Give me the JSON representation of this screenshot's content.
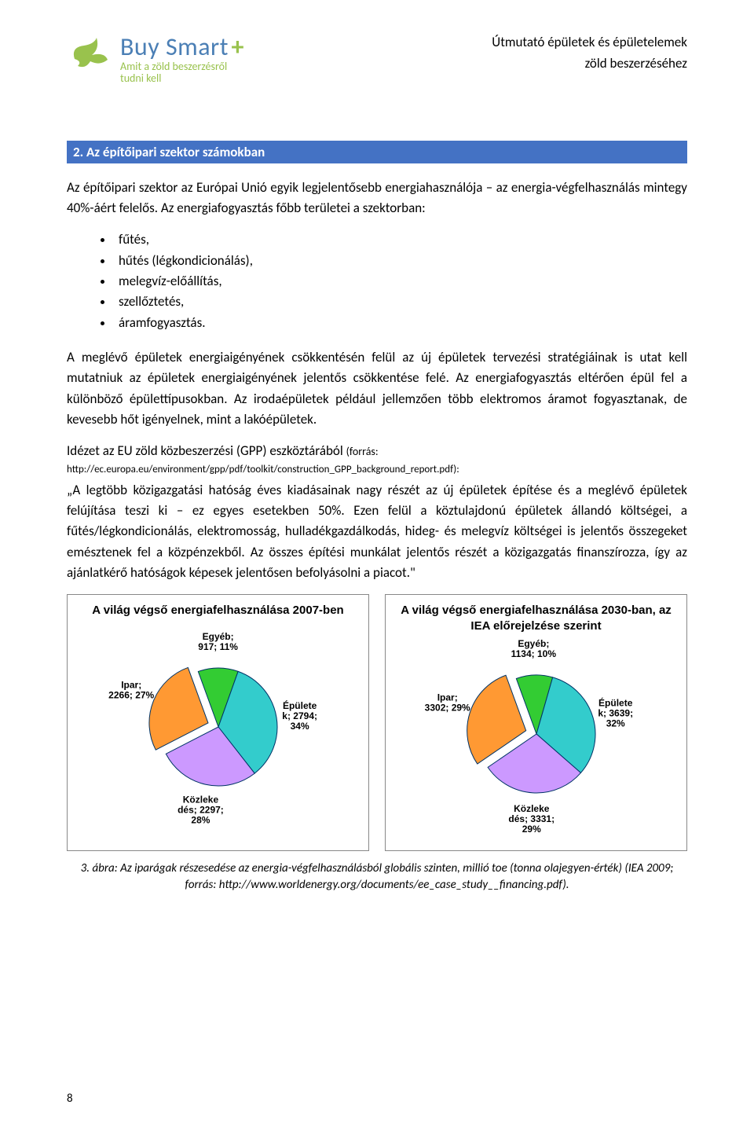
{
  "header": {
    "logo_main": "Buy Smart",
    "logo_plus": "+",
    "logo_sub_l1": "Amit a zöld beszerzésről",
    "logo_sub_l2": "tudni kell",
    "right_l1": "Útmutató épületek és épületelemek",
    "right_l2": "zöld beszerzéséhez"
  },
  "section_bar": "2.   Az építőipari szektor számokban",
  "para1": "Az építőipari szektor az Európai Unió egyik legjelentősebb energiahasználója – az energia-végfelhasználás mintegy 40%-áért felelős. Az energiafogyasztás főbb területei a szektorban:",
  "bullets": [
    "fűtés,",
    "hűtés (légkondicionálás),",
    "melegvíz-előállítás,",
    "szellőztetés,",
    "áramfogyasztás."
  ],
  "para2": "A meglévő épületek energiaigényének csökkentésén felül az új épületek tervezési stratégiáinak is utat kell mutatniuk az épületek energiaigényének jelentős csökkentése felé. Az energiafogyasztás eltérően épül fel a különböző épülettípusokban. Az irodaépületek például jellemzően több elektromos áramot fogyasztanak, de kevesebb hőt igényelnek, mint a lakóépületek.",
  "para3_lead": "Idézet az EU zöld közbeszerzési (GPP) eszköztárából",
  "para3_src_label": "(forrás:",
  "para3_url": "http://ec.europa.eu/environment/gpp/pdf/toolkit/construction_GPP_background_report.pdf):",
  "para4": "„A legtöbb közigazgatási hatóság éves kiadásainak nagy részét az új épületek építése és a meglévő épületek felújítása teszi ki – ez egyes esetekben 50%. Ezen felül a köztulajdonú épületek állandó költségei, a fűtés/légkondicionálás, elektromosság, hulladékgazdálkodás, hideg- és melegvíz költségei is jelentős összegeket emésztenek fel a közpénzekből. Az összes építési munkálat jelentős részét a közigazgatás finanszírozza, így az ajánlatkérő hatóságok képesek jelentősen befolyásolni a piacot.\"",
  "chart_left": {
    "type": "pie",
    "title": "A világ végső energiafelhasználása 2007-ben",
    "slices": [
      {
        "label": "Egyéb",
        "value": 917,
        "pct": 11,
        "color": "#33cc33"
      },
      {
        "label": "Épületek",
        "value": 2794,
        "pct": 34,
        "color": "#33cccc"
      },
      {
        "label": "Közlekedés",
        "value": 2297,
        "pct": 28,
        "color": "#cc99ff"
      },
      {
        "label": "Ipar",
        "value": 2266,
        "pct": 27,
        "color": "#ff9933"
      }
    ],
    "explode_index": 3,
    "label_color": "#000000",
    "stroke": "#003366",
    "background": "#ffffff",
    "title_fontsize": 15,
    "label_fontsize": 12
  },
  "chart_right": {
    "type": "pie",
    "title": "A világ végső energiafelhasználása 2030-ban, az IEA előrejelzése szerint",
    "slices": [
      {
        "label": "Egyéb",
        "value": 1134,
        "pct": 10,
        "color": "#33cc33"
      },
      {
        "label": "Épületek",
        "value": 3639,
        "pct": 32,
        "color": "#33cccc"
      },
      {
        "label": "Közlekedés",
        "value": 3331,
        "pct": 29,
        "color": "#cc99ff"
      },
      {
        "label": "Ipar",
        "value": 3302,
        "pct": 29,
        "color": "#ff9933"
      }
    ],
    "explode_index": 3,
    "label_color": "#000000",
    "stroke": "#003366",
    "background": "#ffffff",
    "title_fontsize": 15,
    "label_fontsize": 12
  },
  "caption": "3. ábra: Az iparágak részesedése az energia-végfelhasználásból globális szinten, millió toe (tonna olajegyen-érték) (IEA 2009; forrás: http://www.worldenergy.org/documents/ee_case_study__financing.pdf).",
  "page_number": "8"
}
